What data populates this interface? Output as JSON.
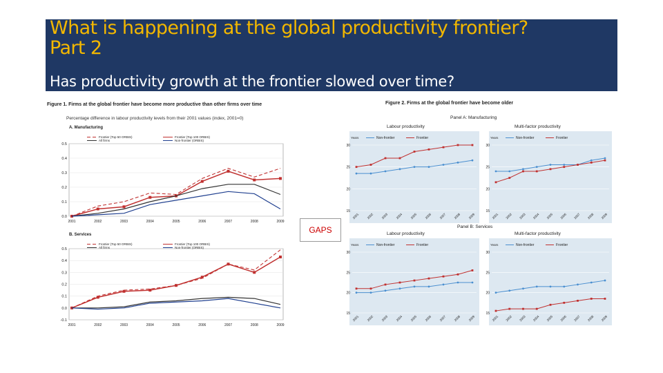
{
  "slide": {
    "title": "What is happening at the global productivity frontier?\nPart 2",
    "subtitle": "Has productivity growth at the frontier slowed over time?",
    "gaps_label": "GAPS"
  },
  "figure1": {
    "caption": "Figure 1.  Firms at the global frontier have become more productive than other firms over time",
    "subcaption": "Percentage difference in labour productivity levels from their 2001 values (index, 2001=0)"
  },
  "figure2": {
    "caption": "Figure 2.  Firms at the global frontier have become older"
  },
  "colors": {
    "frontier": "#c0302f",
    "nonfrontier": "#1f3f8f",
    "nf2": "#4a8fd0",
    "panel_bg": "#dde8f1",
    "banner": "#1f3864",
    "title": "#f2b700"
  },
  "chart_data": [
    {
      "id": "fig1a",
      "type": "line",
      "title": "A. Manufacturing",
      "categories": [
        "2001",
        "2002",
        "2003",
        "2004",
        "2005",
        "2006",
        "2007",
        "2008",
        "2009"
      ],
      "ylim": [
        0,
        0.5
      ],
      "yticks": [
        0.0,
        0.1,
        0.2,
        0.3,
        0.4,
        0.5
      ],
      "series": [
        {
          "name": "Frontier (Top 50 ORBIS)",
          "style": "dashed-red",
          "values": [
            0,
            0.07,
            0.1,
            0.16,
            0.15,
            0.26,
            0.33,
            0.27,
            0.33
          ]
        },
        {
          "name": "Frontier (Top 100 ORBIS)",
          "style": "red-markers",
          "values": [
            0,
            0.05,
            0.065,
            0.13,
            0.14,
            0.24,
            0.31,
            0.25,
            0.26
          ]
        },
        {
          "name": "All firms",
          "style": "dark",
          "values": [
            0,
            0.02,
            0.05,
            0.1,
            0.14,
            0.19,
            0.22,
            0.22,
            0.15
          ]
        },
        {
          "name": "Non-frontier (ORBIS)",
          "style": "blue",
          "values": [
            0,
            0.01,
            0.02,
            0.08,
            0.11,
            0.14,
            0.17,
            0.155,
            0.05
          ]
        }
      ]
    },
    {
      "id": "fig1b",
      "type": "line",
      "title": "B. Services",
      "categories": [
        "2001",
        "2002",
        "2003",
        "2004",
        "2005",
        "2006",
        "2007",
        "2008",
        "2009"
      ],
      "ylim": [
        -0.1,
        0.5
      ],
      "yticks": [
        -0.1,
        0.0,
        0.1,
        0.2,
        0.3,
        0.4,
        0.5
      ],
      "ytick_labels": [
        "-0.1",
        "0.0",
        "0.1",
        "0.2",
        "0.3",
        "0.4",
        "0.5"
      ],
      "series": [
        {
          "name": "Frontier (Top 50 ORBIS)",
          "style": "dashed-red",
          "values": [
            0,
            0.1,
            0.15,
            0.16,
            0.19,
            0.25,
            0.37,
            0.32,
            0.49
          ]
        },
        {
          "name": "Frontier (Top 100 ORBIS)",
          "style": "red-markers",
          "values": [
            0,
            0.09,
            0.14,
            0.15,
            0.19,
            0.26,
            0.37,
            0.3,
            0.43
          ]
        },
        {
          "name": "All firms",
          "style": "dark",
          "values": [
            0,
            0.0,
            0.01,
            0.05,
            0.06,
            0.08,
            0.09,
            0.08,
            0.03
          ]
        },
        {
          "name": "Non-frontier (ORBIS)",
          "style": "blue",
          "values": [
            0,
            -0.01,
            0.0,
            0.04,
            0.05,
            0.06,
            0.08,
            0.04,
            0.0
          ]
        }
      ]
    },
    {
      "id": "fig2a-lp",
      "type": "line",
      "panel": "Panel A: Manufacturing",
      "title": "Labour productivity",
      "ylabel": "Years",
      "categories": [
        "2001",
        "2002",
        "2003",
        "2004",
        "2005",
        "2006",
        "2007",
        "2008",
        "2009"
      ],
      "ylim": [
        15,
        30
      ],
      "yticks": [
        15,
        20,
        25,
        30
      ],
      "series": [
        {
          "name": "Non-frontier",
          "values": [
            23.5,
            23.5,
            24.0,
            24.5,
            25.0,
            25.0,
            25.5,
            26.0,
            26.5
          ]
        },
        {
          "name": "Frontier",
          "values": [
            25.0,
            25.5,
            27.0,
            27.0,
            28.5,
            29.0,
            29.5,
            30.0,
            30.0
          ]
        }
      ]
    },
    {
      "id": "fig2a-mfp",
      "type": "line",
      "panel": "Panel A: Manufacturing",
      "title": "Multi-factor productivity",
      "ylabel": "Years",
      "categories": [
        "2001",
        "2002",
        "2003",
        "2004",
        "2005",
        "2006",
        "2007",
        "2008",
        "2009"
      ],
      "ylim": [
        15,
        30
      ],
      "yticks": [
        15,
        20,
        25,
        30
      ],
      "series": [
        {
          "name": "Non-frontier",
          "values": [
            24.0,
            24.0,
            24.5,
            25.0,
            25.5,
            25.5,
            25.5,
            26.5,
            27.0
          ]
        },
        {
          "name": "Frontier",
          "values": [
            21.5,
            22.5,
            24.0,
            24.0,
            24.5,
            25.0,
            25.5,
            26.0,
            26.5
          ]
        }
      ]
    },
    {
      "id": "fig2b-lp",
      "type": "line",
      "panel": "Panel B: Services",
      "title": "Labour productivity",
      "ylabel": "Years",
      "categories": [
        "2001",
        "2002",
        "2003",
        "2004",
        "2005",
        "2006",
        "2007",
        "2008",
        "2009"
      ],
      "ylim": [
        15,
        30
      ],
      "yticks": [
        15,
        20,
        25,
        30
      ],
      "series": [
        {
          "name": "Non-frontier",
          "values": [
            20.0,
            20.0,
            20.5,
            21.0,
            21.5,
            21.5,
            22.0,
            22.5,
            22.5
          ]
        },
        {
          "name": "Frontier",
          "values": [
            21.0,
            21.0,
            22.0,
            22.5,
            23.0,
            23.5,
            24.0,
            24.5,
            25.5
          ]
        }
      ]
    },
    {
      "id": "fig2b-mfp",
      "type": "line",
      "panel": "Panel B: Services",
      "title": "Multi-factor productivity",
      "ylabel": "Years",
      "categories": [
        "2001",
        "2002",
        "2003",
        "2004",
        "2005",
        "2006",
        "2007",
        "2008",
        "2009"
      ],
      "ylim": [
        15,
        30
      ],
      "yticks": [
        15,
        20,
        25,
        30
      ],
      "series": [
        {
          "name": "Non-frontier",
          "values": [
            20.0,
            20.5,
            21.0,
            21.5,
            21.5,
            21.5,
            22.0,
            22.5,
            23.0
          ]
        },
        {
          "name": "Frontier",
          "values": [
            15.5,
            16.0,
            16.0,
            16.0,
            17.0,
            17.5,
            18.0,
            18.5,
            18.5
          ]
        }
      ]
    }
  ]
}
